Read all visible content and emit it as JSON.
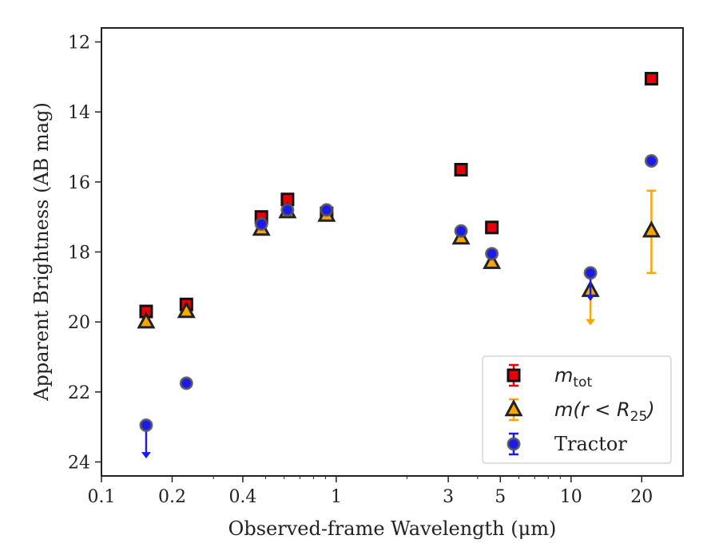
{
  "chart_data": {
    "type": "scatter",
    "xlabel": "Observed-frame Wavelength (μm)",
    "ylabel": "Apparent Brightness (AB mag)",
    "xscale": "log",
    "xlim": [
      0.1,
      30
    ],
    "ylim": [
      24.4,
      11.6
    ],
    "y_inverted": true,
    "xticks": [
      {
        "value": 0.1,
        "label": "0.1"
      },
      {
        "value": 0.2,
        "label": "0.2"
      },
      {
        "value": 0.4,
        "label": "0.4"
      },
      {
        "value": 1,
        "label": "1"
      },
      {
        "value": 3,
        "label": "3"
      },
      {
        "value": 5,
        "label": "5"
      },
      {
        "value": 10,
        "label": "10"
      },
      {
        "value": 20,
        "label": "20"
      }
    ],
    "yticks": [
      12,
      14,
      16,
      18,
      20,
      22,
      24
    ],
    "legend_position": "lower-right",
    "series": [
      {
        "name": "m_tot",
        "legend_text": "m",
        "legend_sub": "tot",
        "marker": "square",
        "face_color": "#e8000b",
        "edge_color": "#111111",
        "err_color": "#e8000b",
        "points": [
          {
            "x": 0.155,
            "y": 19.7
          },
          {
            "x": 0.23,
            "y": 19.5
          },
          {
            "x": 0.48,
            "y": 17.0
          },
          {
            "x": 0.62,
            "y": 16.5
          },
          {
            "x": 0.91,
            "y": 16.9
          },
          {
            "x": 3.4,
            "y": 15.65
          },
          {
            "x": 4.6,
            "y": 17.3
          },
          {
            "x": 22.0,
            "y": 13.05
          }
        ]
      },
      {
        "name": "m(r < R25)",
        "legend_text": "m(r < R",
        "legend_sub": "25",
        "legend_tail": ")",
        "marker": "triangle",
        "face_color": "#ffa500",
        "edge_color": "#222222",
        "err_color": "#ffa500",
        "points": [
          {
            "x": 0.155,
            "y": 20.0
          },
          {
            "x": 0.23,
            "y": 19.7
          },
          {
            "x": 0.48,
            "y": 17.35
          },
          {
            "x": 0.62,
            "y": 16.85
          },
          {
            "x": 0.91,
            "y": 16.95
          },
          {
            "x": 3.4,
            "y": 17.6
          },
          {
            "x": 4.6,
            "y": 18.3
          },
          {
            "x": 12.1,
            "y": 19.1,
            "upper_limit": true,
            "arrow_to": 20.1
          },
          {
            "x": 22.0,
            "y": 17.4,
            "yerr": [
              16.25,
              18.6
            ]
          }
        ]
      },
      {
        "name": "Tractor",
        "legend_text": "Tractor",
        "marker": "circle",
        "face_color": "#1a1aee",
        "edge_color": "#555555",
        "err_color": "#1a1aee",
        "points": [
          {
            "x": 0.155,
            "y": 22.95,
            "upper_limit": true,
            "arrow_to": 23.9
          },
          {
            "x": 0.23,
            "y": 21.75
          },
          {
            "x": 0.48,
            "y": 17.2
          },
          {
            "x": 0.62,
            "y": 16.8
          },
          {
            "x": 0.91,
            "y": 16.8
          },
          {
            "x": 3.4,
            "y": 17.4
          },
          {
            "x": 4.6,
            "y": 18.05
          },
          {
            "x": 12.1,
            "y": 18.6,
            "upper_limit": true,
            "arrow_to": 19.4
          },
          {
            "x": 22.0,
            "y": 15.4
          }
        ]
      }
    ]
  }
}
